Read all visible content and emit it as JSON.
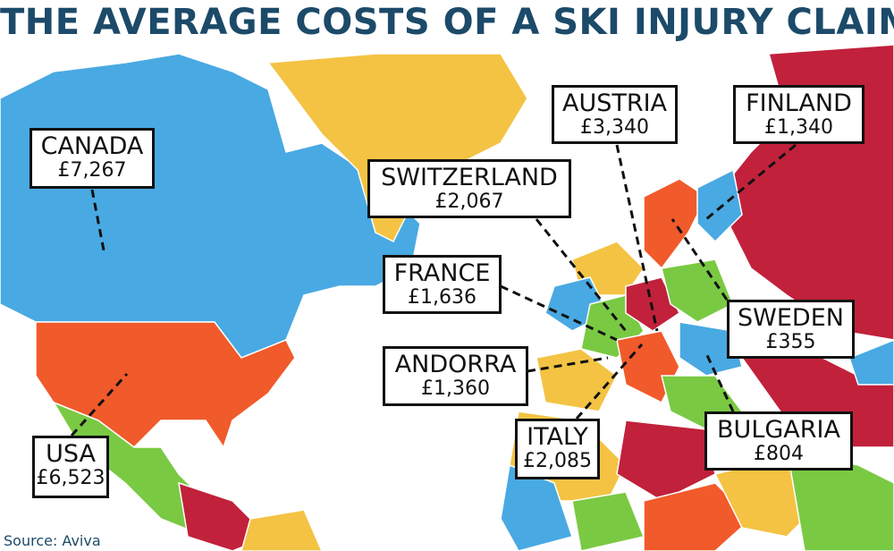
{
  "header": {
    "title": "THE AVERAGE COSTS OF A SKI INJURY CLAIM"
  },
  "callouts": [
    {
      "country": "CANADA",
      "cost": "£7,267"
    },
    {
      "country": "USA",
      "cost": "£6,523"
    },
    {
      "country": "SWITZERLAND",
      "cost": "£2,067"
    },
    {
      "country": "FRANCE",
      "cost": "£1,636"
    },
    {
      "country": "ANDORRA",
      "cost": "£1,360"
    },
    {
      "country": "ITALY",
      "cost": "£2,085"
    },
    {
      "country": "AUSTRIA",
      "cost": "£3,340"
    },
    {
      "country": "FINLAND",
      "cost": "£1,340"
    },
    {
      "country": "SWEDEN",
      "cost": "£355"
    },
    {
      "country": "BULGARIA",
      "cost": "£804"
    }
  ],
  "footer": {
    "source": "Source: Aviva"
  }
}
